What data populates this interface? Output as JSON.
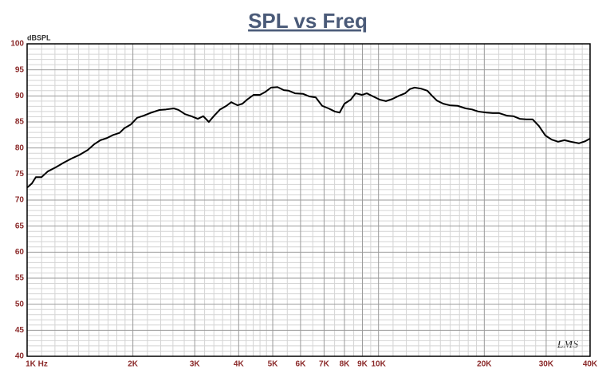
{
  "chart_data": {
    "type": "line",
    "title": "SPL vs Freq",
    "y_label": "dBSPL",
    "watermark": "LMS",
    "xscale": "log",
    "grid": true,
    "color": "#000000",
    "x": [
      1000,
      1032,
      1059,
      1099,
      1145,
      1207,
      1272,
      1340,
      1412,
      1487,
      1551,
      1617,
      1686,
      1758,
      1833,
      1891,
      1972,
      2056,
      2144,
      2259,
      2380,
      2483,
      2616,
      2698,
      2814,
      2934,
      3060,
      3172,
      3290,
      3396,
      3541,
      3692,
      3809,
      3972,
      4100,
      4229,
      4410,
      4598,
      4745,
      4947,
      5159,
      5379,
      5550,
      5787,
      6098,
      6358,
      6630,
      6912,
      7207,
      7515,
      7752,
      8000,
      8342,
      8607,
      8975,
      9261,
      9655,
      10067,
      10497,
      10945,
      11413,
      11900,
      12276,
      12667,
      13208,
      13771,
      14210,
      14663,
      15290,
      15942,
      16800,
      17700,
      18453,
      19241,
      20276,
      21140,
      22040,
      23225,
      24216,
      25247,
      26325,
      27450,
      28620,
      29840,
      31117,
      32443,
      33828,
      35274,
      37167,
      38751,
      40000
    ],
    "values": [
      72.4,
      73.2,
      74.4,
      74.4,
      75.5,
      76.3,
      77.2,
      78.0,
      78.7,
      79.6,
      80.7,
      81.5,
      81.9,
      82.5,
      82.9,
      83.8,
      84.5,
      85.8,
      86.2,
      86.8,
      87.3,
      87.4,
      87.6,
      87.3,
      86.5,
      86.1,
      85.6,
      86.1,
      85.0,
      86.1,
      87.4,
      88.1,
      88.8,
      88.2,
      88.5,
      89.3,
      90.2,
      90.2,
      90.7,
      91.6,
      91.7,
      91.1,
      91.0,
      90.5,
      90.4,
      89.9,
      89.7,
      88.1,
      87.6,
      87.0,
      86.8,
      88.5,
      89.3,
      90.5,
      90.2,
      90.5,
      89.9,
      89.3,
      89.0,
      89.4,
      90.0,
      90.5,
      91.3,
      91.6,
      91.4,
      91.0,
      90.0,
      89.1,
      88.5,
      88.2,
      88.1,
      87.6,
      87.4,
      87.0,
      86.8,
      86.7,
      86.7,
      86.2,
      86.1,
      85.6,
      85.5,
      85.5,
      84.2,
      82.4,
      81.6,
      81.2,
      81.5,
      81.2,
      80.9,
      81.3,
      81.8
    ],
    "xlim": [
      1000,
      40000
    ],
    "ylim": [
      40,
      100
    ],
    "xticks": [
      {
        "value": 1000,
        "label": "1K Hz"
      },
      {
        "value": 2000,
        "label": "2K"
      },
      {
        "value": 3000,
        "label": "3K"
      },
      {
        "value": 4000,
        "label": "4K"
      },
      {
        "value": 5000,
        "label": "5K"
      },
      {
        "value": 6000,
        "label": "6K"
      },
      {
        "value": 7000,
        "label": "7K"
      },
      {
        "value": 8000,
        "label": "8K"
      },
      {
        "value": 9000,
        "label": "9K"
      },
      {
        "value": 10000,
        "label": "10K"
      },
      {
        "value": 20000,
        "label": "20K"
      },
      {
        "value": 30000,
        "label": "30K"
      },
      {
        "value": 40000,
        "label": "40K"
      }
    ],
    "yticks": [
      40,
      45,
      50,
      55,
      60,
      65,
      70,
      75,
      80,
      85,
      90,
      95,
      100
    ],
    "x_minor_ticks": [
      1100,
      1200,
      1300,
      1400,
      1500,
      1600,
      1700,
      1800,
      1900,
      2200,
      2400,
      2600,
      2800,
      3200,
      3400,
      3600,
      3800,
      4200,
      4400,
      4600,
      4800,
      5500,
      6500,
      7500,
      8500,
      9500,
      11000,
      12000,
      13000,
      14000,
      15000,
      16000,
      17000,
      18000,
      19000,
      22000,
      24000,
      26000,
      28000,
      32000,
      34000,
      36000,
      38000
    ],
    "y_minor_ticks": [
      41,
      42,
      43,
      44,
      46,
      47,
      48,
      49,
      51,
      52,
      53,
      54,
      56,
      57,
      58,
      59,
      61,
      62,
      63,
      64,
      66,
      67,
      68,
      69,
      71,
      72,
      73,
      74,
      76,
      77,
      78,
      79,
      81,
      82,
      83,
      84,
      86,
      87,
      88,
      89,
      91,
      92,
      93,
      94,
      96,
      97,
      98,
      99
    ]
  }
}
